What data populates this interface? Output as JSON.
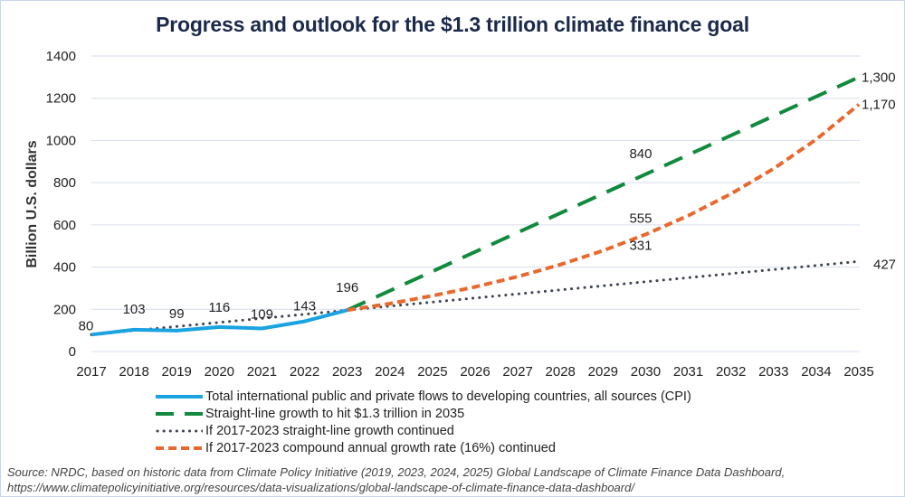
{
  "chart_data": {
    "type": "line",
    "title": "Progress and outlook for the $1.3 trillion climate finance goal",
    "xlabel": "",
    "ylabel": "Billion U.S. dollars",
    "ylim": [
      0,
      1400
    ],
    "yticks": [
      0,
      200,
      400,
      600,
      800,
      1000,
      1200,
      1400
    ],
    "x": [
      2017,
      2018,
      2019,
      2020,
      2021,
      2022,
      2023,
      2024,
      2025,
      2026,
      2027,
      2028,
      2029,
      2030,
      2031,
      2032,
      2033,
      2034,
      2035
    ],
    "grid": true,
    "legend_position": "bottom",
    "series": [
      {
        "name": "Total international public and private flows to developing countries, all sources (CPI)",
        "color": "#1aa3e0",
        "style": "solid",
        "x": [
          2017,
          2018,
          2019,
          2020,
          2021,
          2022,
          2023
        ],
        "values": [
          80,
          103,
          99,
          116,
          109,
          143,
          196
        ],
        "labels": [
          {
            "x": 2017,
            "text": "80"
          },
          {
            "x": 2018,
            "text": "103"
          },
          {
            "x": 2019,
            "text": "99"
          },
          {
            "x": 2020,
            "text": "116"
          },
          {
            "x": 2021,
            "text": "109"
          },
          {
            "x": 2022,
            "text": "143"
          },
          {
            "x": 2023,
            "text": "196"
          }
        ]
      },
      {
        "name": "Straight-line growth to hit $1.3 trillion in 2035",
        "color": "#118a3e",
        "style": "long-dash",
        "x": [
          2023,
          2035
        ],
        "values": [
          196,
          1300
        ],
        "labels": [
          {
            "x": 2030,
            "y": 840,
            "text": "840"
          },
          {
            "x": 2035,
            "y": 1300,
            "text": "1,300"
          }
        ]
      },
      {
        "name": "If 2017-2023 straight-line growth continued",
        "color": "#3d4450",
        "style": "dotted",
        "x": [
          2017,
          2035
        ],
        "values": [
          80,
          427
        ],
        "labels": [
          {
            "x": 2030,
            "y": 331,
            "text": "331"
          },
          {
            "x": 2035,
            "y": 427,
            "text": "427"
          }
        ]
      },
      {
        "name": "If 2017-2023 compound annual growth rate (16%) continued",
        "color": "#e8692f",
        "style": "short-dash",
        "x": [
          2023,
          2024,
          2025,
          2026,
          2027,
          2028,
          2029,
          2030,
          2031,
          2032,
          2033,
          2034,
          2035
        ],
        "values": [
          196,
          227,
          264,
          306,
          355,
          412,
          478,
          555,
          644,
          747,
          866,
          1005,
          1170
        ],
        "labels": [
          {
            "x": 2030,
            "y": 555,
            "text": "555"
          },
          {
            "x": 2035,
            "y": 1170,
            "text": "1,170"
          }
        ]
      }
    ],
    "source": "Source: NRDC, based on historic data from Climate Policy Initiative (2019, 2023, 2024, 2025) Global Landscape of Climate Finance Data Dashboard,",
    "source_url": "https://www.climatepolicyinitiative.org/resources/data-visualizations/global-landscape-of-climate-finance-data-dashboard/"
  }
}
